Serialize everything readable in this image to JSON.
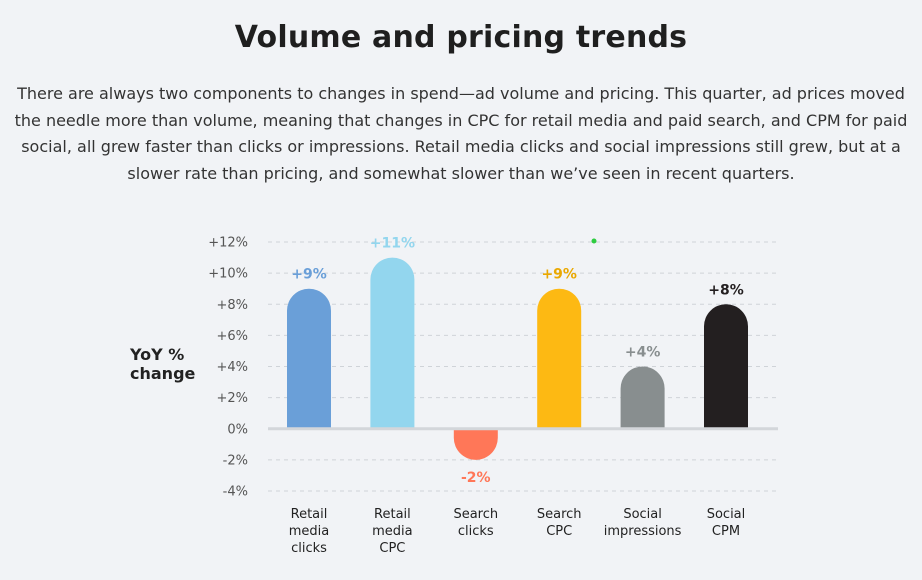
{
  "title": "Volume and pricing trends",
  "description": "There are always two components to changes in spend—ad volume and pricing. This quarter, ad prices moved the needle more than volume, meaning that changes in CPC for retail media and paid search, and CPM for paid social, all grew faster than clicks or impressions. Retail media clicks and social impressions still grew, but at a slower rate than pricing, and somewhat slower than we’ve seen in recent quarters.",
  "chart_data": {
    "type": "bar",
    "title": "",
    "xlabel": "",
    "ylabel_lines": [
      "YoY %",
      "change"
    ],
    "ylim": [
      -4,
      12
    ],
    "yticks": [
      {
        "value": 12,
        "label": "+12%"
      },
      {
        "value": 10,
        "label": "+10%"
      },
      {
        "value": 8,
        "label": "+8%"
      },
      {
        "value": 6,
        "label": "+6%"
      },
      {
        "value": 4,
        "label": "+4%"
      },
      {
        "value": 2,
        "label": "+2%"
      },
      {
        "value": 0,
        "label": "0%"
      },
      {
        "value": -2,
        "label": "-2%"
      },
      {
        "value": -4,
        "label": "-4%"
      }
    ],
    "grid": true,
    "bars": [
      {
        "category_lines": [
          "Retail",
          "media",
          "clicks"
        ],
        "value": 9,
        "label": "+9%",
        "color": "#6a9fd8",
        "label_color": "#6a9fd8"
      },
      {
        "category_lines": [
          "Retail",
          "media",
          "CPC"
        ],
        "value": 11,
        "label": "+11%",
        "color": "#93d6ee",
        "label_color": "#93d6ee"
      },
      {
        "category_lines": [
          "Search",
          "clicks"
        ],
        "value": -2,
        "label": "-2%",
        "color": "#ff7758",
        "label_color": "#ff7758"
      },
      {
        "category_lines": [
          "Search",
          "CPC"
        ],
        "value": 9,
        "label": "+9%",
        "color": "#fdb913",
        "label_color": "#eaa800"
      },
      {
        "category_lines": [
          "Social",
          "impressions"
        ],
        "value": 4,
        "label": "+4%",
        "color": "#888e8f",
        "label_color": "#888e8f"
      },
      {
        "category_lines": [
          "Social",
          "CPM"
        ],
        "value": 8,
        "label": "+8%",
        "color": "#231f20",
        "label_color": "#231f20"
      }
    ]
  }
}
